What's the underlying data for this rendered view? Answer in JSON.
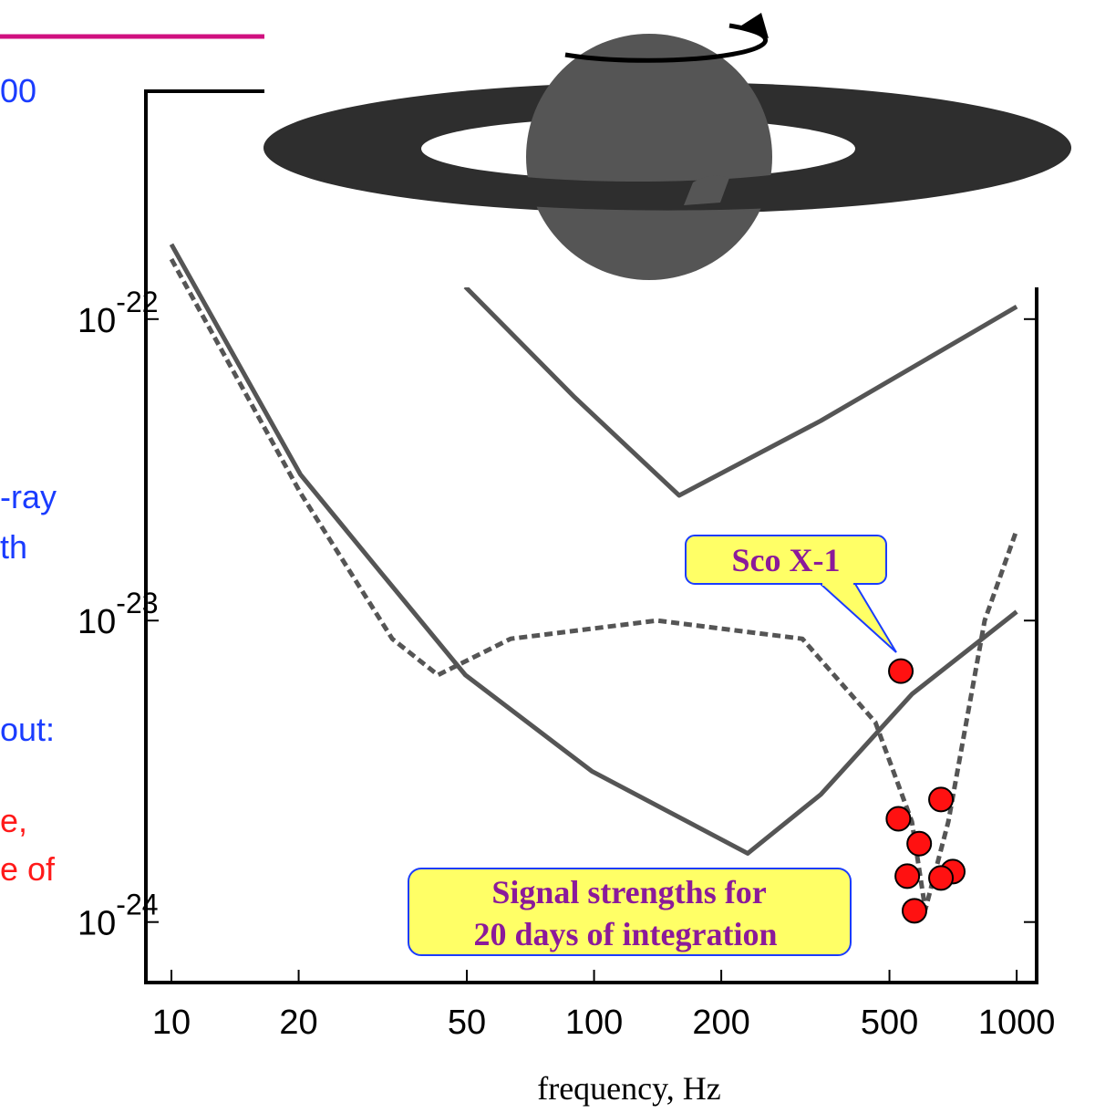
{
  "chart_data": {
    "type": "line",
    "xlabel": "frequency, Hz",
    "xscale": "log",
    "yscale": "log",
    "xlim": [
      8.7,
      1115
    ],
    "ylim": [
      6.3e-25,
      5.7e-22
    ],
    "xticks": [
      10,
      20,
      50,
      100,
      200,
      500,
      1000
    ],
    "yticks": [
      {
        "value": 1e-22,
        "label": "10",
        "exponent": "-22"
      },
      {
        "value": 1e-23,
        "label": "10",
        "exponent": "-23"
      },
      {
        "value": 1e-24,
        "label": "10",
        "exponent": "-24"
      }
    ],
    "series": [
      {
        "color": "#555555",
        "style": "solid",
        "x": [
          49.6,
          90,
          159,
          344,
          1000
        ],
        "values": [
          1.28e-22,
          5.5e-23,
          2.6e-23,
          4.6e-23,
          1.1e-22
        ]
      },
      {
        "color": "#555555",
        "style": "solid",
        "x": [
          10,
          20.2,
          31.6,
          49.6,
          99,
          231,
          344,
          565,
          1000
        ],
        "values": [
          1.77e-22,
          3.05e-23,
          1.42e-23,
          6.6e-24,
          3.16e-24,
          1.69e-24,
          2.65e-24,
          5.7e-24,
          1.07e-23
        ]
      },
      {
        "color": "#555555",
        "style": "dashed",
        "x": [
          10,
          20.2,
          33.3,
          42.7,
          63.5,
          141,
          311,
          463,
          565,
          608,
          689,
          840,
          1000
        ],
        "values": [
          1.58e-22,
          2.65e-23,
          8.7e-24,
          6.6e-24,
          8.7e-24,
          1e-23,
          8.7e-24,
          4.6e-24,
          2.15e-24,
          1.1e-24,
          2.15e-24,
          1e-23,
          2e-23
        ]
      },
      {
        "color": "#ff1111",
        "style": "markers",
        "x": [
          532,
          525,
          662,
          588,
          551,
          706,
          662,
          573
        ],
        "values": [
          6.8e-24,
          2.2e-24,
          2.55e-24,
          1.82e-24,
          1.42e-24,
          1.47e-24,
          1.4e-24,
          1.09e-24
        ]
      }
    ],
    "annotations": [
      "Sco X-1",
      "Signal strengths for",
      "20 days of  integration"
    ],
    "cropped_text": [
      "00",
      "-ray",
      "th",
      "out:",
      "e,",
      "e of"
    ]
  }
}
